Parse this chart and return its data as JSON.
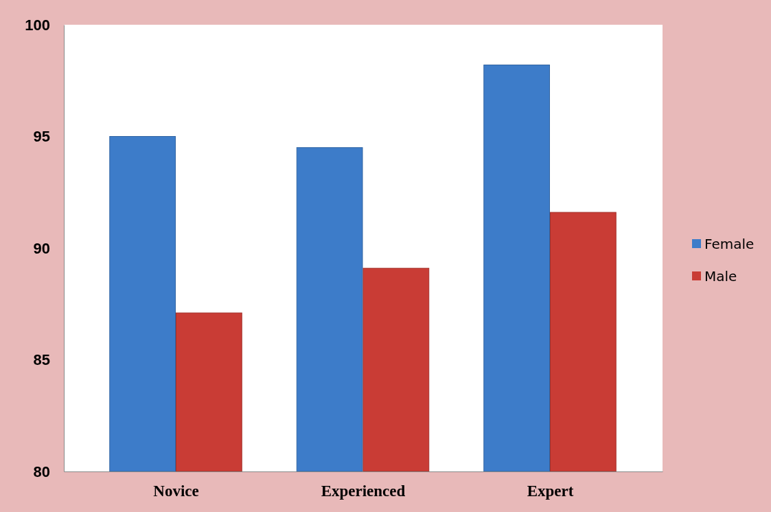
{
  "chart_data": {
    "type": "bar",
    "categories": [
      "Novice",
      "Experienced",
      "Expert"
    ],
    "series": [
      {
        "name": "Female",
        "color": "#3d7cc9",
        "values": [
          95.0,
          94.5,
          98.2
        ]
      },
      {
        "name": "Male",
        "color": "#c93c35",
        "values": [
          87.1,
          89.1,
          91.6
        ]
      }
    ],
    "ylim": [
      80,
      100
    ],
    "yticks": [
      80,
      85,
      90,
      95,
      100
    ],
    "grid": false,
    "legend": "right"
  }
}
